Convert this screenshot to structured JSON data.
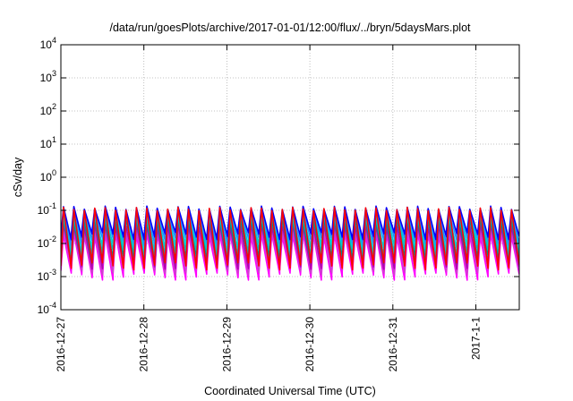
{
  "chart_data": {
    "type": "line",
    "title": "/data/run/goesPlots/archive/2017-01-01/12:00/flux/../bryn/5daysMars.plot",
    "xlabel": "Coordinated Universal Time (UTC)",
    "ylabel": "cSv/day",
    "y_scale": "log",
    "ylim": [
      0.0001,
      10000
    ],
    "y_ticks": [
      {
        "base": "10",
        "exp": "-4",
        "value": 0.0001
      },
      {
        "base": "10",
        "exp": "-3",
        "value": 0.001
      },
      {
        "base": "10",
        "exp": "-2",
        "value": 0.01
      },
      {
        "base": "10",
        "exp": "-1",
        "value": 0.1
      },
      {
        "base": "10",
        "exp": "0",
        "value": 1
      },
      {
        "base": "10",
        "exp": "1",
        "value": 10
      },
      {
        "base": "10",
        "exp": "2",
        "value": 100
      },
      {
        "base": "10",
        "exp": "3",
        "value": 1000
      },
      {
        "base": "10",
        "exp": "4",
        "value": 10000
      }
    ],
    "x_ticks": [
      "2016-12-27",
      "2016-12-28",
      "2016-12-29",
      "2016-12-30",
      "2016-12-31",
      "2017-1-1"
    ],
    "xlim": [
      "2016-12-27 00:00",
      "2017-01-01 12:00"
    ],
    "grid": true,
    "legend": "none",
    "sawtooth_period_hours": 3,
    "series": [
      {
        "color": "#ff00ff",
        "peak": 0.018,
        "trough": 0.0012
      },
      {
        "color": "#cc44cc",
        "peak": 0.025,
        "trough": 0.0018
      },
      {
        "color": "#b000b0",
        "peak": 0.035,
        "trough": 0.0026
      },
      {
        "color": "#008b8b",
        "peak": 0.05,
        "trough": 0.004
      },
      {
        "color": "#00bbbb",
        "peak": 0.065,
        "trough": 0.006
      },
      {
        "color": "#00ced1",
        "peak": 0.08,
        "trough": 0.009
      },
      {
        "color": "#1e90ff",
        "peak": 0.1,
        "trough": 0.014
      },
      {
        "color": "#0000ff",
        "peak": 0.12,
        "trough": 0.02
      },
      {
        "color": "#ff0000",
        "peak": 0.11,
        "trough": 0.0025
      }
    ]
  }
}
